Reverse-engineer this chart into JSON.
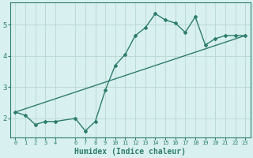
{
  "xlabel": "Humidex (Indice chaleur)",
  "ylabel": "",
  "x_data": [
    0,
    1,
    2,
    3,
    4,
    6,
    7,
    8,
    9,
    10,
    11,
    12,
    13,
    14,
    15,
    16,
    17,
    18,
    19,
    20,
    21,
    22,
    23
  ],
  "y_data": [
    2.2,
    2.1,
    1.8,
    1.9,
    1.9,
    2.0,
    1.6,
    1.9,
    2.9,
    3.7,
    4.05,
    4.65,
    4.9,
    5.35,
    5.15,
    5.05,
    4.75,
    5.25,
    4.35,
    4.55,
    4.65,
    4.65,
    4.65
  ],
  "trend_x": [
    0,
    23
  ],
  "trend_y": [
    2.2,
    4.65
  ],
  "line_color": "#2e7d6e",
  "trend_color": "#2e7d6e",
  "bg_color": "#d8f0f0",
  "grid_color": "#b8d8d0",
  "tick_color": "#2e7d6e",
  "ylim": [
    1.4,
    5.7
  ],
  "yticks": [
    2,
    3,
    4,
    5
  ],
  "xlim": [
    -0.5,
    23.5
  ],
  "xticks": [
    0,
    1,
    2,
    3,
    4,
    6,
    7,
    8,
    9,
    10,
    11,
    12,
    13,
    14,
    15,
    16,
    17,
    18,
    19,
    20,
    21,
    22,
    23
  ],
  "xtick_labels": [
    "0",
    "1",
    "2",
    "3",
    "4",
    "6",
    "7",
    "8",
    "9",
    "10",
    "11",
    "12",
    "13",
    "14",
    "15",
    "16",
    "17",
    "18",
    "19",
    "20",
    "21",
    "22",
    "23"
  ]
}
